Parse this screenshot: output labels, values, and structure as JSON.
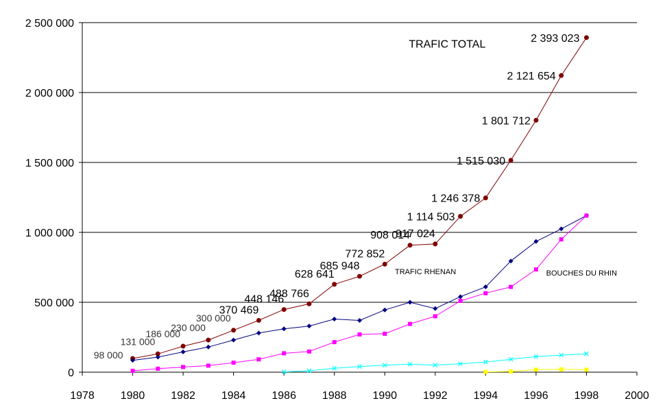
{
  "chart_data": {
    "type": "line",
    "xlim": [
      1978,
      2000
    ],
    "ylim": [
      0,
      2500000
    ],
    "x_ticks": [
      "1978",
      "1980",
      "1982",
      "1984",
      "1986",
      "1988",
      "1990",
      "1992",
      "1994",
      "1996",
      "1998",
      "2000"
    ],
    "y_ticks": [
      "0",
      "500 000",
      "1 000 000",
      "1 500 000",
      "2 000 000",
      "2 500 000"
    ],
    "grid": "horizontal",
    "series": [
      {
        "name": "TRAFIC TOTAL",
        "color": "#800000",
        "marker": "circle",
        "x": [
          1980,
          1981,
          1982,
          1983,
          1984,
          1985,
          1986,
          1987,
          1988,
          1989,
          1990,
          1991,
          1992,
          1993,
          1994,
          1995,
          1996,
          1997,
          1998
        ],
        "values": [
          98000,
          131000,
          186000,
          230000,
          300000,
          370469,
          448146,
          488766,
          628641,
          685948,
          772852,
          908014,
          917024,
          1114503,
          1246378,
          1515030,
          1801712,
          2121654,
          2393023
        ]
      },
      {
        "name": "TRAFIC RHENAN",
        "color": "#000080",
        "marker": "diamond",
        "x": [
          1980,
          1981,
          1982,
          1983,
          1984,
          1985,
          1986,
          1987,
          1988,
          1989,
          1990,
          1991,
          1992,
          1993,
          1994,
          1995,
          1996,
          1997,
          1998
        ],
        "values": [
          85000,
          108000,
          145000,
          180000,
          230000,
          280000,
          310000,
          330000,
          380000,
          370000,
          445000,
          500000,
          455000,
          540000,
          610000,
          795000,
          935000,
          1025000,
          1120000
        ]
      },
      {
        "name": "BOUCHES DU RHIN",
        "color": "#ff00ff",
        "marker": "square",
        "x": [
          1980,
          1981,
          1982,
          1983,
          1984,
          1985,
          1986,
          1987,
          1988,
          1989,
          1990,
          1991,
          1992,
          1993,
          1994,
          1995,
          1996,
          1997,
          1998
        ],
        "values": [
          10000,
          25000,
          37000,
          47000,
          68000,
          92000,
          135000,
          148000,
          215000,
          270000,
          275000,
          345000,
          400000,
          510000,
          565000,
          610000,
          735000,
          950000,
          1120000
        ]
      },
      {
        "color": "#00ffff",
        "marker": "x",
        "x": [
          1986,
          1987,
          1988,
          1989,
          1990,
          1991,
          1992,
          1993,
          1994,
          1995,
          1996,
          1997,
          1998
        ],
        "values": [
          2000,
          10000,
          28000,
          40000,
          50000,
          57000,
          50000,
          60000,
          72000,
          92000,
          112000,
          122000,
          132000
        ]
      },
      {
        "color": "#ffff00",
        "marker": "square",
        "x": [
          1994,
          1995,
          1996,
          1997,
          1998
        ],
        "values": [
          2000,
          5000,
          18000,
          20000,
          18000
        ]
      }
    ],
    "data_labels": [
      {
        "x": 1980,
        "y": 98000,
        "text": "98 000",
        "style": "small"
      },
      {
        "x": 1981,
        "y": 131000,
        "text": "131 000",
        "style": "small"
      },
      {
        "x": 1982,
        "y": 186000,
        "text": "186 000",
        "style": "small"
      },
      {
        "x": 1983,
        "y": 230000,
        "text": "230 000",
        "style": "small"
      },
      {
        "x": 1984,
        "y": 300000,
        "text": "300 000",
        "style": "small"
      },
      {
        "x": 1985,
        "y": 370469,
        "text": "370 469",
        "style": "big"
      },
      {
        "x": 1986,
        "y": 448146,
        "text": "448 146",
        "style": "big"
      },
      {
        "x": 1987,
        "y": 488766,
        "text": "488 766",
        "style": "big"
      },
      {
        "x": 1988,
        "y": 628641,
        "text": "628 641",
        "style": "big"
      },
      {
        "x": 1989,
        "y": 685948,
        "text": "685 948",
        "style": "big"
      },
      {
        "x": 1990,
        "y": 772852,
        "text": "772 852",
        "style": "big"
      },
      {
        "x": 1991,
        "y": 908014,
        "text": "908 014",
        "style": "big"
      },
      {
        "x": 1992,
        "y": 917024,
        "text": "917 024",
        "style": "big"
      },
      {
        "x": 1993,
        "y": 1114503,
        "text": "1 114 503",
        "style": "big"
      },
      {
        "x": 1994,
        "y": 1246378,
        "text": "1 246 378",
        "style": "big"
      },
      {
        "x": 1995,
        "y": 1515030,
        "text": "1 515 030",
        "style": "big"
      },
      {
        "x": 1996,
        "y": 1801712,
        "text": "1 801 712",
        "style": "big"
      },
      {
        "x": 1997,
        "y": 2121654,
        "text": "2 121 654",
        "style": "big"
      },
      {
        "x": 1998,
        "y": 2393023,
        "text": "2 393 023",
        "style": "big"
      }
    ],
    "series_labels": [
      {
        "text": "TRAFIC TOTAL",
        "style": "big"
      },
      {
        "text": "TRAFIC RHENAN",
        "style": "small"
      },
      {
        "text": "BOUCHES DU RHIN",
        "style": "small"
      }
    ]
  }
}
